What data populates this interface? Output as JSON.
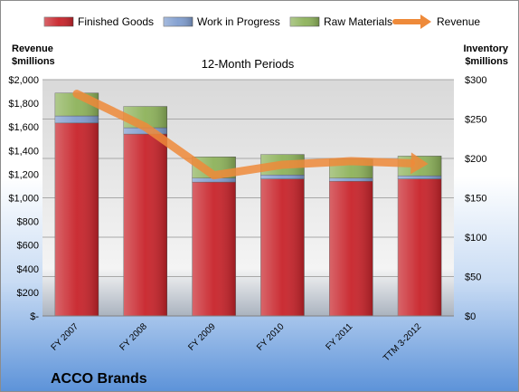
{
  "chart_data": {
    "type": "bar",
    "stacked": true,
    "title": "12-Month Periods",
    "company": "ACCO Brands",
    "left_axis_label": [
      "Revenue",
      "$millions"
    ],
    "right_axis_label": [
      "Inventory",
      "$millions"
    ],
    "categories": [
      "FY 2007",
      "FY 2008",
      "FY 2009",
      "FY 2010",
      "FY 2011",
      "TTM 3-2012"
    ],
    "left_axis": {
      "min": 0,
      "max": 2000,
      "step": 200,
      "tick_labels": [
        "$-",
        "$200",
        "$400",
        "$600",
        "$800",
        "$1,000",
        "$1,200",
        "$1,400",
        "$1,600",
        "$1,800",
        "$2,000"
      ]
    },
    "right_axis": {
      "min": 0,
      "max": 300,
      "step": 50,
      "tick_labels": [
        "$0",
        "$50",
        "$100",
        "$150",
        "$200",
        "$250",
        "$300"
      ]
    },
    "series": [
      {
        "name": "Finished Goods",
        "axis": "right",
        "color": "#c8232a",
        "values": [
          245,
          231,
          170,
          174,
          171,
          174
        ]
      },
      {
        "name": "Work in Progress",
        "axis": "right",
        "color": "#7f9dcf",
        "values": [
          9,
          8,
          5,
          5,
          4,
          4
        ]
      },
      {
        "name": "Raw Materials",
        "axis": "right",
        "color": "#8db25a",
        "values": [
          29,
          27,
          27,
          26,
          24,
          25
        ]
      },
      {
        "name": "Revenue",
        "axis": "left",
        "type": "line",
        "color": "#ee8a3a",
        "values": [
          1880,
          1600,
          1190,
          1280,
          1310,
          1290
        ]
      }
    ]
  }
}
